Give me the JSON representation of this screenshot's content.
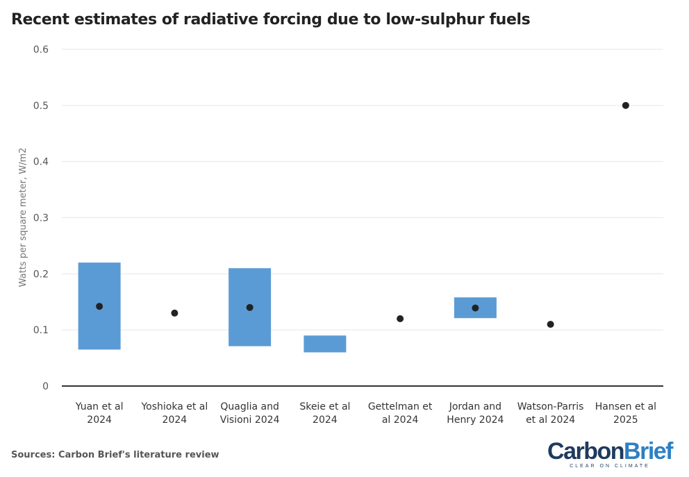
{
  "title": "Recent estimates of radiative forcing due to low-sulphur fuels",
  "source": "Sources: Carbon Brief's literature review",
  "logo": {
    "carbon": "Carbon",
    "brief": "Brief",
    "tagline": "CLEAR ON CLIMATE"
  },
  "colors": {
    "range_bar": "#5b9bd5",
    "point": "#222222",
    "grid": "#e6e6e6",
    "axis": "#333333"
  },
  "chart_data": {
    "type": "range-and-point",
    "title": "Recent estimates of radiative forcing due to low-sulphur fuels",
    "xlabel": "",
    "ylabel": "Watts per square meter, W/m2",
    "ylim": [
      0,
      0.6
    ],
    "yticks": [
      0,
      0.1,
      0.2,
      0.3,
      0.4,
      0.5,
      0.6
    ],
    "grid": true,
    "studies": [
      {
        "label": [
          "Yuan et al",
          "2024"
        ],
        "low": 0.065,
        "high": 0.22,
        "central": 0.142
      },
      {
        "label": [
          "Yoshioka et al",
          "2024"
        ],
        "low": null,
        "high": null,
        "central": 0.13
      },
      {
        "label": [
          "Quaglia and",
          "Visioni 2024"
        ],
        "low": 0.071,
        "high": 0.21,
        "central": 0.14
      },
      {
        "label": [
          "Skeie et al",
          "2024"
        ],
        "low": 0.06,
        "high": 0.09,
        "central": null
      },
      {
        "label": [
          "Gettelman et",
          "al 2024"
        ],
        "low": null,
        "high": null,
        "central": 0.12
      },
      {
        "label": [
          "Jordan and",
          "Henry 2024"
        ],
        "low": 0.121,
        "high": 0.158,
        "central": 0.139
      },
      {
        "label": [
          "Watson-Parris",
          "et al 2024"
        ],
        "low": null,
        "high": null,
        "central": 0.11
      },
      {
        "label": [
          "Hansen et al",
          "2025"
        ],
        "low": null,
        "high": null,
        "central": 0.5
      }
    ]
  }
}
